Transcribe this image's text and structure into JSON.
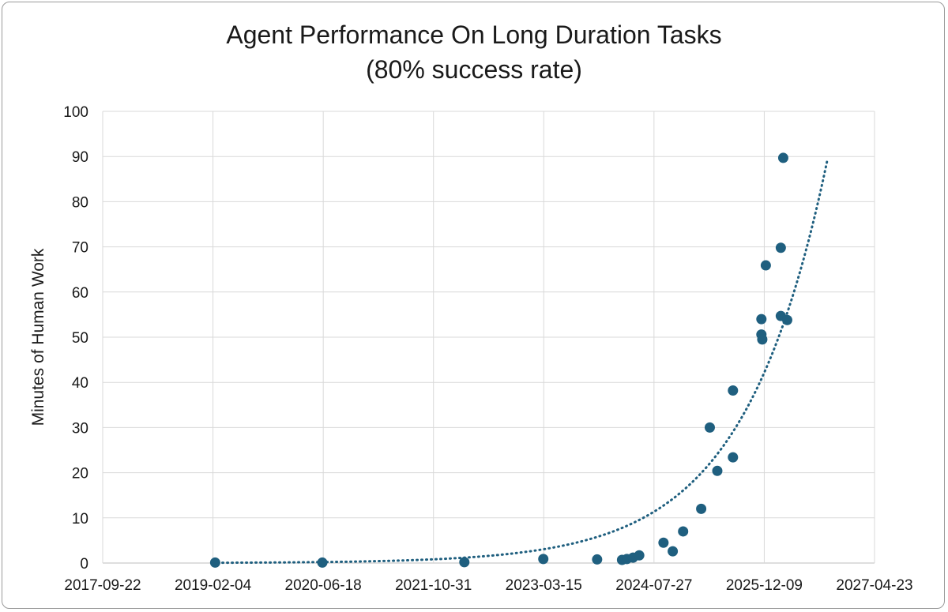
{
  "chart_data": {
    "type": "scatter",
    "title": "Agent Performance On Long Duration Tasks",
    "subtitle": "(80% success rate)",
    "xlabel": "",
    "ylabel": "Minutes of Human Work",
    "x_tick_labels": [
      "2017-09-22",
      "2019-02-04",
      "2020-06-18",
      "2021-10-31",
      "2023-03-15",
      "2024-07-27",
      "2025-12-09",
      "2027-04-23"
    ],
    "xlim": [
      "2017-09-22",
      "2027-04-23"
    ],
    "ylim": [
      0,
      100
    ],
    "y_ticks": [
      0,
      10,
      20,
      30,
      40,
      50,
      60,
      70,
      80,
      90,
      100
    ],
    "grid": true,
    "legend": "none",
    "marker_color": "#1f5f7f",
    "series": [
      {
        "points": [
          {
            "x": "2019-02-14",
            "y": 0.1
          },
          {
            "x": "2020-06-14",
            "y": 0.1
          },
          {
            "x": "2022-03-20",
            "y": 0.2
          },
          {
            "x": "2023-03-13",
            "y": 0.9
          },
          {
            "x": "2023-11-12",
            "y": 0.8
          },
          {
            "x": "2024-03-04",
            "y": 0.7
          },
          {
            "x": "2024-03-26",
            "y": 0.9
          },
          {
            "x": "2024-04-23",
            "y": 1.2
          },
          {
            "x": "2024-05-21",
            "y": 1.7
          },
          {
            "x": "2024-09-08",
            "y": 4.5
          },
          {
            "x": "2024-10-20",
            "y": 2.6
          },
          {
            "x": "2024-12-06",
            "y": 7.0
          },
          {
            "x": "2025-02-26",
            "y": 12.0
          },
          {
            "x": "2025-04-06",
            "y": 30.0
          },
          {
            "x": "2025-05-10",
            "y": 20.4
          },
          {
            "x": "2025-07-20",
            "y": 23.4
          },
          {
            "x": "2025-07-20",
            "y": 38.2
          },
          {
            "x": "2025-11-26",
            "y": 54.0
          },
          {
            "x": "2025-11-26",
            "y": 50.6
          },
          {
            "x": "2025-11-30",
            "y": 49.5
          },
          {
            "x": "2025-12-16",
            "y": 65.9
          },
          {
            "x": "2026-02-22",
            "y": 69.8
          },
          {
            "x": "2026-02-22",
            "y": 54.7
          },
          {
            "x": "2026-03-05",
            "y": 89.7
          },
          {
            "x": "2026-03-23",
            "y": 53.8
          }
        ]
      }
    ],
    "trendline": {
      "type": "exponential",
      "style": "dotted",
      "x_start": "2019-02-04",
      "y_start": 0.06,
      "x_end": "2026-09-20",
      "y_end": 89.0
    }
  }
}
